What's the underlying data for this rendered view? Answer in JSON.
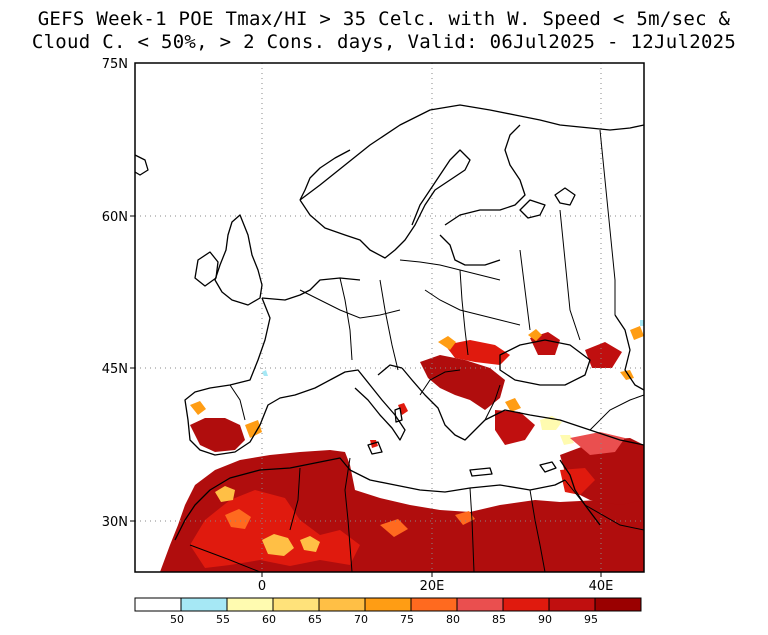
{
  "title": {
    "line1": "GEFS Week-1 POE Tmax/HI > 35 Celc. with W. Speed < 5m/sec &",
    "line2": "Cloud C. < 50%, > 2 Cons. days, Valid: 06Jul2025 - 12Jul2025"
  },
  "map": {
    "region": "Europe / Mediterranean / North Africa",
    "lon_range": [
      -15,
      45
    ],
    "lat_range": [
      25,
      75
    ],
    "lat_ticks": [
      {
        "value": 75,
        "label": "75N"
      },
      {
        "value": 60,
        "label": "60N"
      },
      {
        "value": 45,
        "label": "45N"
      },
      {
        "value": 30,
        "label": "30N"
      }
    ],
    "lon_ticks": [
      {
        "value": 0,
        "label": "0"
      },
      {
        "value": 20,
        "label": "20E"
      },
      {
        "value": 40,
        "label": "40E"
      }
    ],
    "gridlines": "dotted",
    "high_probability_areas": [
      "North Africa (Morocco, Algeria, Tunisia, Libya, Egypt)",
      "Southern Iberia",
      "Balkans and Danube basin",
      "Western Turkey",
      "Middle East",
      "North Caucasus / southern Russia"
    ]
  },
  "colorbar": {
    "bins": [
      {
        "label": "50",
        "color": "#ffffff"
      },
      {
        "label": "55",
        "color": "#a6e8f5"
      },
      {
        "label": "60",
        "color": "#fffbb0"
      },
      {
        "label": "65",
        "color": "#ffe27a"
      },
      {
        "label": "70",
        "color": "#ffbf45"
      },
      {
        "label": "75",
        "color": "#ff9d14"
      },
      {
        "label": "80",
        "color": "#ff6a1f"
      },
      {
        "label": "85",
        "color": "#ea4f4f"
      },
      {
        "label": "90",
        "color": "#e01a0e"
      },
      {
        "label": "95",
        "color": "#c00f0f"
      },
      {
        "label": "",
        "color": "#9a0000"
      }
    ]
  }
}
